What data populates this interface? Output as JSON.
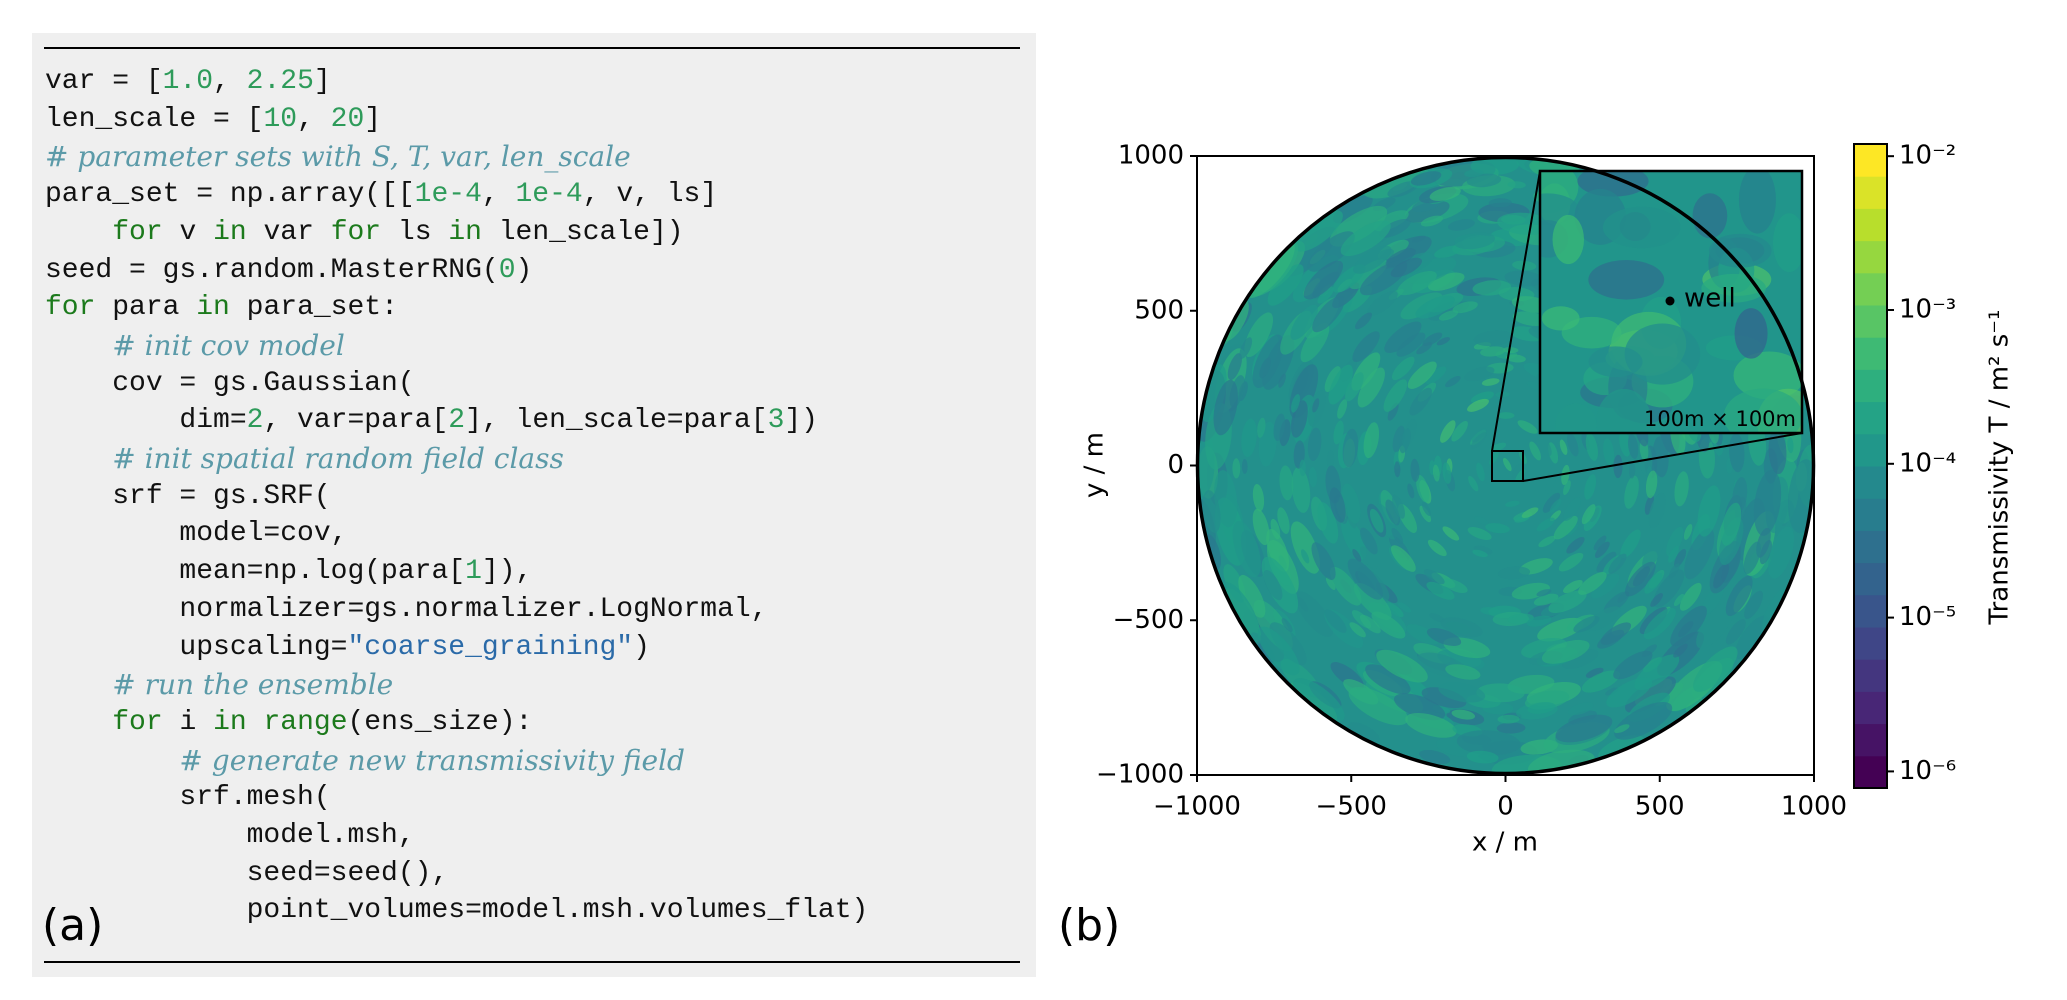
{
  "panel_a_label": "(a)",
  "panel_b_label": "(b)",
  "code": {
    "lines": [
      "var = [1.0, 2.25]",
      "len_scale = [10, 20]",
      "# parameter sets with S, T, var, len_scale",
      "para_set = np.array([[1e-4, 1e-4, v, ls]",
      "    for v in var for ls in len_scale])",
      "seed = gs.random.MasterRNG(0)",
      "for para in para_set:",
      "    # init cov model",
      "    cov = gs.Gaussian(",
      "        dim=2, var=para[2], len_scale=para[3])",
      "    # init spatial random field class",
      "    srf = gs.SRF(",
      "        model=cov,",
      "        mean=np.log(para[1]),",
      "        normalizer=gs.normalizer.LogNormal,",
      "        upscaling=\"coarse_graining\")",
      "    # run the ensemble",
      "    for i in range(ens_size):",
      "        # generate new transmissivity field",
      "        srf.mesh(",
      "            model.msh,",
      "            seed=seed(),",
      "            point_volumes=model.msh.volumes_flat)"
    ]
  },
  "chart_data": {
    "type": "field",
    "xlabel": "x / m",
    "ylabel": "y / m",
    "xlim": [
      -1000,
      1000
    ],
    "ylim": [
      -1000,
      1000
    ],
    "xticks": [
      {
        "value": -1000,
        "label": "−1000"
      },
      {
        "value": -500,
        "label": "−500"
      },
      0,
      500,
      1000
    ],
    "yticks": [
      {
        "value": -1000,
        "label": "−1000"
      },
      {
        "value": -500,
        "label": "−500"
      },
      0,
      500,
      1000
    ],
    "colorbar": {
      "label": "Transmissivity T / m² s⁻¹",
      "scale": "log",
      "lim": [
        7.8e-07,
        0.012
      ],
      "ticks": [
        {
          "value": 1e-06,
          "label": "10⁻⁶"
        },
        {
          "value": 1e-05,
          "label": "10⁻⁵"
        },
        {
          "value": 0.0001,
          "label": "10⁻⁴"
        },
        {
          "value": 0.001,
          "label": "10⁻³"
        },
        {
          "value": 0.01,
          "label": "10⁻²"
        }
      ]
    },
    "annotations": [
      "well",
      "100m × 100m"
    ]
  }
}
